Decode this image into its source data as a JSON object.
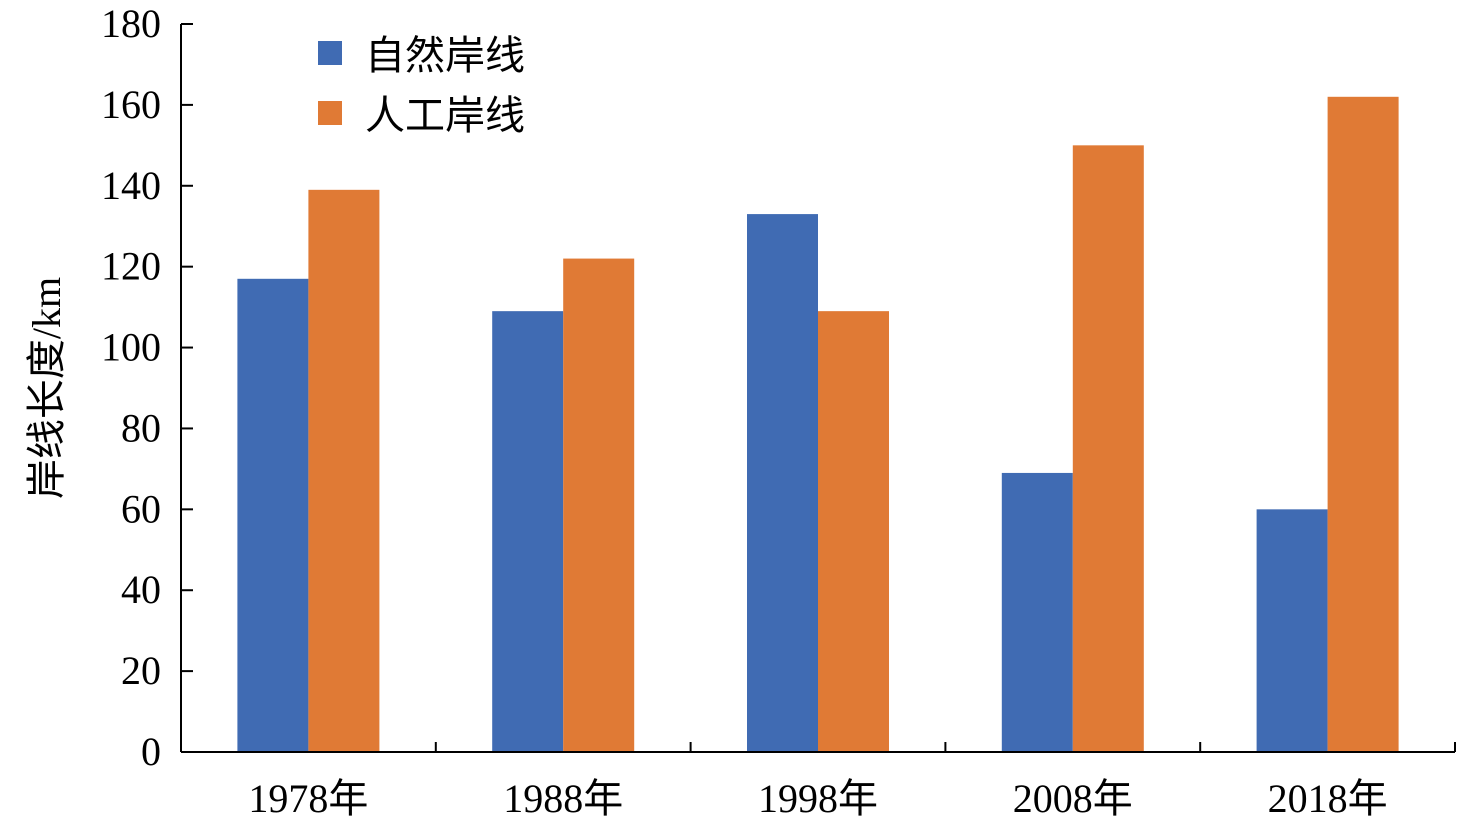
{
  "chart_data": {
    "type": "bar",
    "categories": [
      "1978年",
      "1988年",
      "1998年",
      "2008年",
      "2018年"
    ],
    "series": [
      {
        "name": "自然岸线",
        "color": "#406bb3",
        "values": [
          117,
          109,
          133,
          69,
          60
        ]
      },
      {
        "name": "人工岸线",
        "color": "#e07a35",
        "values": [
          139,
          122,
          109,
          150,
          162
        ]
      }
    ],
    "xlabel": "",
    "ylabel": "岸线长度/km",
    "ylim": [
      0,
      180
    ],
    "yticks": [
      0,
      20,
      40,
      60,
      80,
      100,
      120,
      140,
      160,
      180
    ],
    "grid": false,
    "legend_position": "top-left"
  }
}
